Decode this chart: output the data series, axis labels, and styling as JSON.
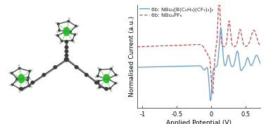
{
  "legend_line1": "6b: NBu₄[B(C₆H₃)(CF₃)₃]₂",
  "legend_line2": "6b: NBu₄PF₆",
  "xlabel": "Applied Potential (V)",
  "ylabel": "Normalised Current (a.u.)",
  "xlim": [
    -1.08,
    0.72
  ],
  "ylim": [
    -1.15,
    1.25
  ],
  "blue_color": "#5b9bd5",
  "red_color": "#d94040",
  "bg_color": "#ffffff",
  "xticks": [
    -1.0,
    -0.5,
    0.0,
    0.5
  ],
  "xtick_labels": [
    "-1",
    "-0.5",
    "0",
    "0.5"
  ],
  "axis_fontsize": 6.5,
  "tick_fontsize": 6.0,
  "legend_fontsize": 5.2,
  "dark": "#3a3a3a",
  "med": "#666666",
  "light": "#aaaaaa",
  "lighter": "#cccccc",
  "green": "#22bb22"
}
